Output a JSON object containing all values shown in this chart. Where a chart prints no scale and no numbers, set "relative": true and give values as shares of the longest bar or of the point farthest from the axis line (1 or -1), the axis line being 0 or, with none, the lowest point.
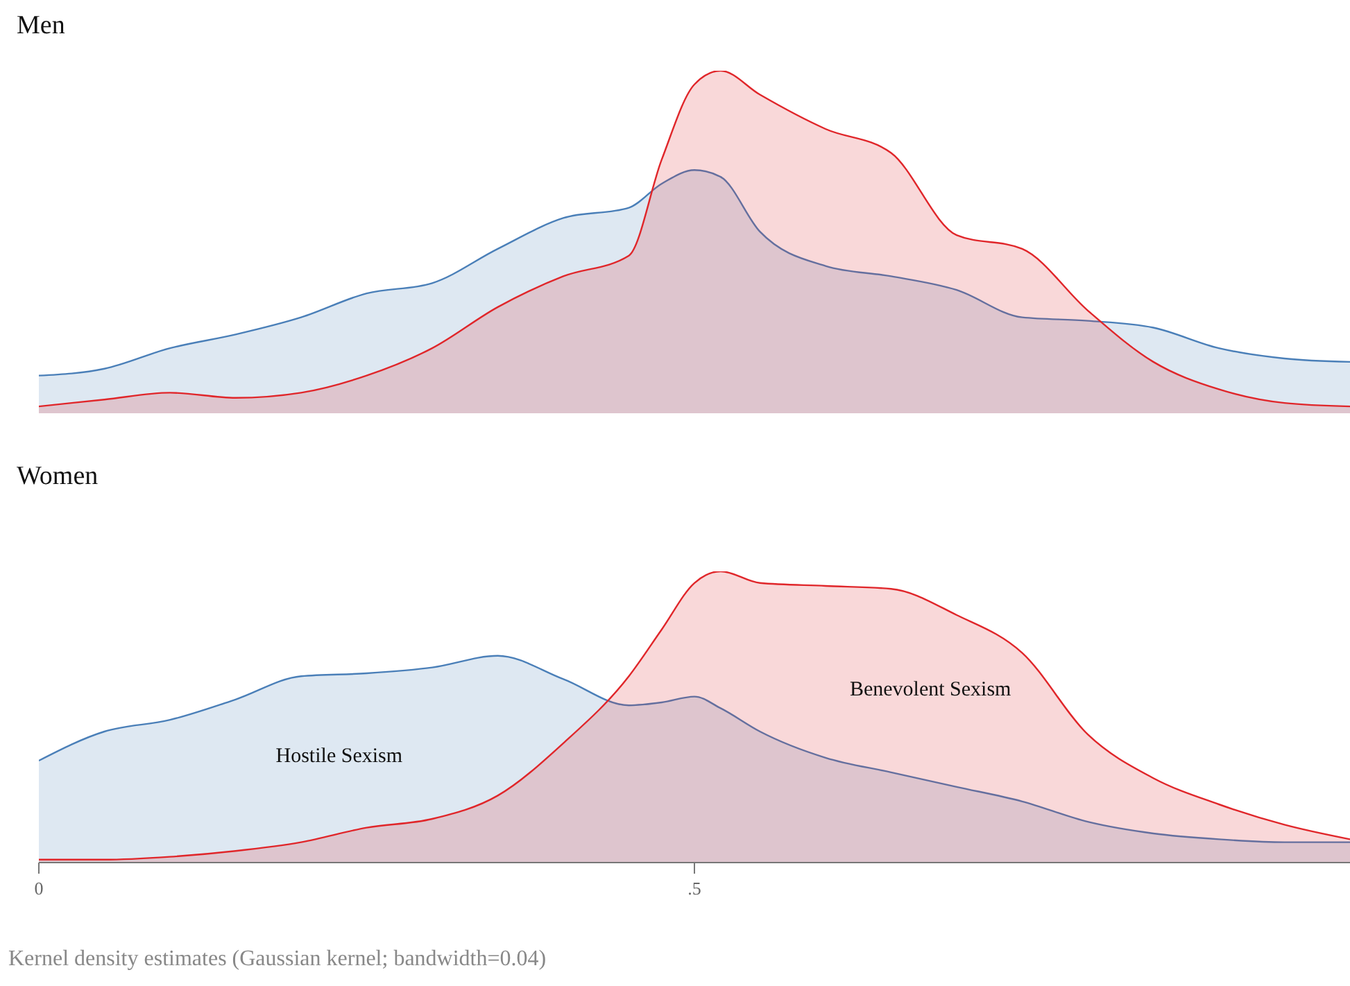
{
  "chart_data": [
    {
      "type": "area",
      "title": "Men",
      "relative": true,
      "xlim": [
        0,
        1
      ],
      "tick_labels": false,
      "grid": false,
      "legend": false,
      "line_style": "solid",
      "marker": "none",
      "x": [
        0,
        0.05,
        0.1,
        0.15,
        0.2,
        0.25,
        0.3,
        0.35,
        0.4,
        0.45,
        0.475,
        0.5,
        0.52,
        0.55,
        0.6,
        0.65,
        0.7,
        0.75,
        0.8,
        0.85,
        0.9,
        0.95,
        1
      ],
      "series": [
        {
          "color": "#4a7fb8",
          "values": [
            0.11,
            0.13,
            0.19,
            0.23,
            0.28,
            0.35,
            0.38,
            0.48,
            0.57,
            0.6,
            0.67,
            0.71,
            0.69,
            0.53,
            0.43,
            0.4,
            0.36,
            0.28,
            0.27,
            0.25,
            0.19,
            0.16,
            0.15
          ]
        },
        {
          "color": "#e0262a",
          "values": [
            0.02,
            0.04,
            0.06,
            0.045,
            0.06,
            0.11,
            0.19,
            0.31,
            0.4,
            0.46,
            0.74,
            0.96,
            1,
            0.93,
            0.83,
            0.76,
            0.52,
            0.48,
            0.3,
            0.15,
            0.07,
            0.03,
            0.02
          ]
        }
      ]
    },
    {
      "type": "area",
      "title": "Women",
      "relative": true,
      "xlim": [
        0,
        1
      ],
      "xticks": [
        0,
        {
          "value": 0.5,
          "label": ".5"
        }
      ],
      "tick_labels": "x",
      "grid": false,
      "legend": false,
      "line_style": "solid",
      "marker": "none",
      "x": [
        0,
        0.05,
        0.1,
        0.15,
        0.2,
        0.25,
        0.3,
        0.35,
        0.4,
        0.45,
        0.475,
        0.5,
        0.52,
        0.55,
        0.6,
        0.65,
        0.7,
        0.75,
        0.8,
        0.85,
        0.9,
        0.95,
        1
      ],
      "series": [
        {
          "name": "Hostile Sexism",
          "color": "#4a7fb8",
          "values": [
            0.35,
            0.45,
            0.49,
            0.56,
            0.64,
            0.65,
            0.67,
            0.71,
            0.63,
            0.54,
            0.55,
            0.57,
            0.53,
            0.45,
            0.36,
            0.31,
            0.26,
            0.21,
            0.14,
            0.1,
            0.08,
            0.07,
            0.07
          ]
        },
        {
          "name": "Benevolent Sexism",
          "color": "#e0262a",
          "values": [
            0.01,
            0.01,
            0.02,
            0.04,
            0.07,
            0.12,
            0.15,
            0.23,
            0.41,
            0.64,
            0.8,
            0.96,
            1,
            0.96,
            0.95,
            0.94,
            0.85,
            0.72,
            0.44,
            0.29,
            0.2,
            0.13,
            0.08
          ]
        }
      ],
      "annotations": [
        "Kernel density estimates (Gaussian kernel; bandwidth=0.04)"
      ]
    }
  ]
}
